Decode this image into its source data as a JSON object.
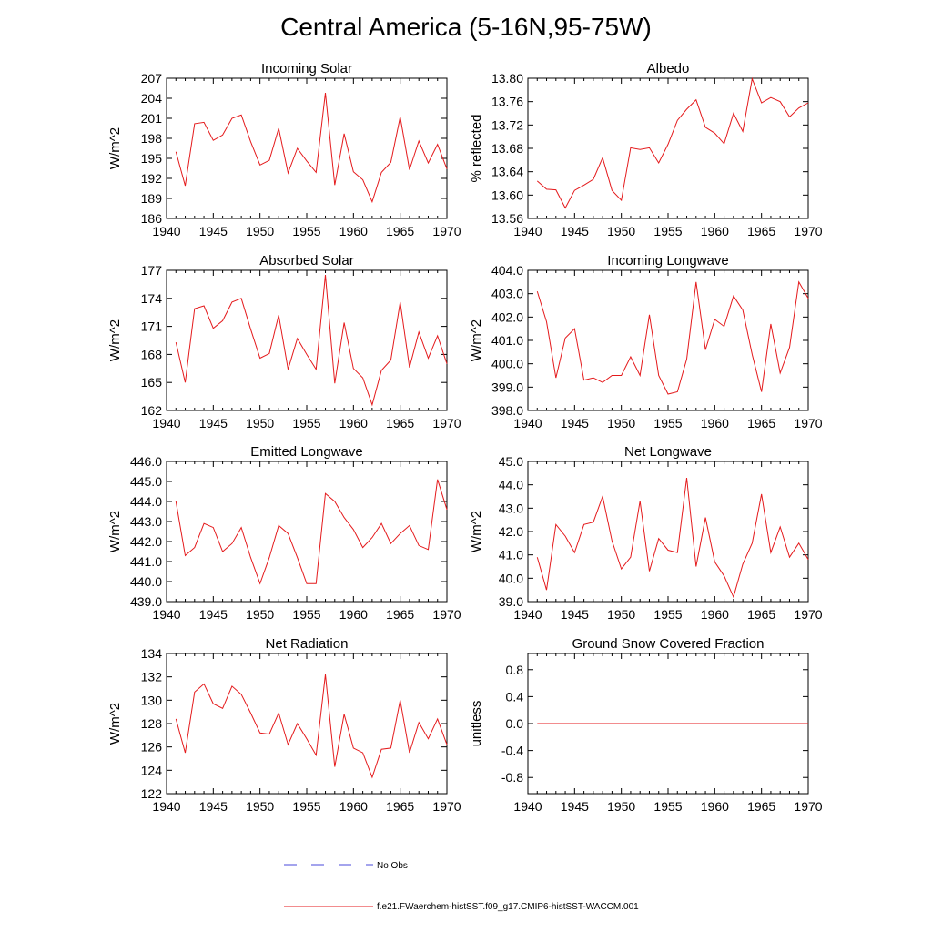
{
  "figure": {
    "title": "Central America (5-16N,95-75W)"
  },
  "legend": {
    "obs_label": "No Obs",
    "obs_color": "#4a4adb",
    "model_label": "f.e21.FWaerchem-histSST.f09_g17.CMIP6-histSST-WACCM.001",
    "model_color": "#e41a1c"
  },
  "chart_data": [
    {
      "type": "line",
      "title": "Incoming Solar",
      "ylabel": "W/m^2",
      "xlabel": "",
      "xlim": [
        1940,
        1970
      ],
      "ylim": [
        186,
        207
      ],
      "yticks": [
        186,
        189,
        192,
        195,
        198,
        201,
        204,
        207
      ],
      "ytick_labels": [
        "186",
        "189",
        "192",
        "195",
        "198",
        "201",
        "204",
        "207"
      ],
      "xticks": [
        1940,
        1945,
        1950,
        1955,
        1960,
        1965,
        1970
      ],
      "series": [
        {
          "x": [
            1941,
            1942,
            1943,
            1944,
            1945,
            1946,
            1947,
            1948,
            1949,
            1950,
            1951,
            1952,
            1953,
            1954,
            1955,
            1956,
            1957,
            1958,
            1959,
            1960,
            1961,
            1962,
            1963,
            1964,
            1965,
            1966,
            1967,
            1968,
            1969,
            1970
          ],
          "values": [
            196.0,
            190.9,
            200.2,
            200.4,
            197.7,
            198.5,
            201.0,
            201.5,
            197.5,
            194.0,
            194.7,
            199.5,
            192.8,
            196.5,
            194.6,
            192.9,
            204.8,
            191.0,
            198.7,
            193.0,
            191.8,
            188.5,
            192.9,
            194.4,
            201.2,
            193.3,
            197.6,
            194.3,
            197.1,
            193.4
          ]
        }
      ]
    },
    {
      "type": "line",
      "title": "Albedo",
      "ylabel": "% reflected",
      "xlabel": "",
      "xlim": [
        1940,
        1970
      ],
      "ylim": [
        13.56,
        13.8
      ],
      "yticks": [
        13.56,
        13.6,
        13.64,
        13.68,
        13.72,
        13.76,
        13.8
      ],
      "ytick_labels": [
        "13.56",
        "13.60",
        "13.64",
        "13.68",
        "13.72",
        "13.76",
        "13.80"
      ],
      "xticks": [
        1940,
        1945,
        1950,
        1955,
        1960,
        1965,
        1970
      ],
      "series": [
        {
          "x": [
            1941,
            1942,
            1943,
            1944,
            1945,
            1946,
            1947,
            1948,
            1949,
            1950,
            1951,
            1952,
            1953,
            1954,
            1955,
            1956,
            1957,
            1958,
            1959,
            1960,
            1961,
            1962,
            1963,
            1964,
            1965,
            1966,
            1967,
            1968,
            1969,
            1970
          ],
          "values": [
            13.624,
            13.61,
            13.609,
            13.578,
            13.608,
            13.617,
            13.627,
            13.664,
            13.608,
            13.591,
            13.681,
            13.678,
            13.681,
            13.655,
            13.687,
            13.728,
            13.747,
            13.763,
            13.716,
            13.706,
            13.688,
            13.74,
            13.709,
            13.799,
            13.758,
            13.767,
            13.76,
            13.734,
            13.749,
            13.758
          ]
        }
      ]
    },
    {
      "type": "line",
      "title": "Absorbed Solar",
      "ylabel": "W/m^2",
      "xlabel": "",
      "xlim": [
        1940,
        1970
      ],
      "ylim": [
        162,
        177
      ],
      "yticks": [
        162,
        165,
        168,
        171,
        174,
        177
      ],
      "ytick_labels": [
        "162",
        "165",
        "168",
        "171",
        "174",
        "177"
      ],
      "xticks": [
        1940,
        1945,
        1950,
        1955,
        1960,
        1965,
        1970
      ],
      "series": [
        {
          "x": [
            1941,
            1942,
            1943,
            1944,
            1945,
            1946,
            1947,
            1948,
            1949,
            1950,
            1951,
            1952,
            1953,
            1954,
            1955,
            1956,
            1957,
            1958,
            1959,
            1960,
            1961,
            1962,
            1963,
            1964,
            1965,
            1966,
            1967,
            1968,
            1969,
            1970
          ],
          "values": [
            169.3,
            165.0,
            172.9,
            173.2,
            170.8,
            171.6,
            173.6,
            174.0,
            170.7,
            167.6,
            168.1,
            172.2,
            166.4,
            169.7,
            168.0,
            166.4,
            176.5,
            164.9,
            171.4,
            166.5,
            165.5,
            162.6,
            166.3,
            167.4,
            173.6,
            166.6,
            170.4,
            167.6,
            170.0,
            167.0
          ]
        }
      ]
    },
    {
      "type": "line",
      "title": "Incoming Longwave",
      "ylabel": "W/m^2",
      "xlabel": "",
      "xlim": [
        1940,
        1970
      ],
      "ylim": [
        398.0,
        404.0
      ],
      "yticks": [
        398,
        399,
        400,
        401,
        402,
        403,
        404
      ],
      "ytick_labels": [
        "398.0",
        "399.0",
        "400.0",
        "401.0",
        "402.0",
        "403.0",
        "404.0"
      ],
      "xticks": [
        1940,
        1945,
        1950,
        1955,
        1960,
        1965,
        1970
      ],
      "series": [
        {
          "x": [
            1941,
            1942,
            1943,
            1944,
            1945,
            1946,
            1947,
            1948,
            1949,
            1950,
            1951,
            1952,
            1953,
            1954,
            1955,
            1956,
            1957,
            1958,
            1959,
            1960,
            1961,
            1962,
            1963,
            1964,
            1965,
            1966,
            1967,
            1968,
            1969,
            1970
          ],
          "values": [
            403.1,
            401.8,
            399.4,
            401.1,
            401.5,
            399.3,
            399.4,
            399.2,
            399.5,
            399.5,
            400.3,
            399.5,
            402.1,
            399.5,
            398.7,
            398.8,
            400.2,
            403.5,
            400.6,
            401.9,
            401.6,
            402.9,
            402.3,
            400.4,
            398.8,
            401.7,
            399.6,
            400.7,
            403.5,
            402.8
          ]
        }
      ]
    },
    {
      "type": "line",
      "title": "Emitted Longwave",
      "ylabel": "W/m^2",
      "xlabel": "",
      "xlim": [
        1940,
        1970
      ],
      "ylim": [
        439.0,
        446.0
      ],
      "yticks": [
        439,
        440,
        441,
        442,
        443,
        444,
        445,
        446
      ],
      "ytick_labels": [
        "439.0",
        "440.0",
        "441.0",
        "442.0",
        "443.0",
        "444.0",
        "445.0",
        "446.0"
      ],
      "xticks": [
        1940,
        1945,
        1950,
        1955,
        1960,
        1965,
        1970
      ],
      "series": [
        {
          "x": [
            1941,
            1942,
            1943,
            1944,
            1945,
            1946,
            1947,
            1948,
            1949,
            1950,
            1951,
            1952,
            1953,
            1954,
            1955,
            1956,
            1957,
            1958,
            1959,
            1960,
            1961,
            1962,
            1963,
            1964,
            1965,
            1966,
            1967,
            1968,
            1969,
            1970
          ],
          "values": [
            444.0,
            441.3,
            441.7,
            442.9,
            442.7,
            441.5,
            441.9,
            442.7,
            441.2,
            439.9,
            441.2,
            442.8,
            442.4,
            441.2,
            439.9,
            439.9,
            444.4,
            444.0,
            443.2,
            442.6,
            441.7,
            442.2,
            442.9,
            441.9,
            442.4,
            442.8,
            441.8,
            441.6,
            445.1,
            443.6
          ]
        }
      ]
    },
    {
      "type": "line",
      "title": "Net Longwave",
      "ylabel": "W/m^2",
      "xlabel": "",
      "xlim": [
        1940,
        1970
      ],
      "ylim": [
        39.0,
        45.0
      ],
      "yticks": [
        39,
        40,
        41,
        42,
        43,
        44,
        45
      ],
      "ytick_labels": [
        "39.0",
        "40.0",
        "41.0",
        "42.0",
        "43.0",
        "44.0",
        "45.0"
      ],
      "xticks": [
        1940,
        1945,
        1950,
        1955,
        1960,
        1965,
        1970
      ],
      "series": [
        {
          "x": [
            1941,
            1942,
            1943,
            1944,
            1945,
            1946,
            1947,
            1948,
            1949,
            1950,
            1951,
            1952,
            1953,
            1954,
            1955,
            1956,
            1957,
            1958,
            1959,
            1960,
            1961,
            1962,
            1963,
            1964,
            1965,
            1966,
            1967,
            1968,
            1969,
            1970
          ],
          "values": [
            40.9,
            39.5,
            42.3,
            41.8,
            41.1,
            42.3,
            42.4,
            43.5,
            41.6,
            40.4,
            40.9,
            43.3,
            40.3,
            41.7,
            41.2,
            41.1,
            44.3,
            40.5,
            42.6,
            40.7,
            40.1,
            39.2,
            40.6,
            41.5,
            43.6,
            41.1,
            42.2,
            40.9,
            41.5,
            40.8
          ]
        }
      ]
    },
    {
      "type": "line",
      "title": "Net Radiation",
      "ylabel": "W/m^2",
      "xlabel": "",
      "xlim": [
        1940,
        1970
      ],
      "ylim": [
        122,
        134
      ],
      "yticks": [
        122,
        124,
        126,
        128,
        130,
        132,
        134
      ],
      "ytick_labels": [
        "122",
        "124",
        "126",
        "128",
        "130",
        "132",
        "134"
      ],
      "xticks": [
        1940,
        1945,
        1950,
        1955,
        1960,
        1965,
        1970
      ],
      "series": [
        {
          "x": [
            1941,
            1942,
            1943,
            1944,
            1945,
            1946,
            1947,
            1948,
            1949,
            1950,
            1951,
            1952,
            1953,
            1954,
            1955,
            1956,
            1957,
            1958,
            1959,
            1960,
            1961,
            1962,
            1963,
            1964,
            1965,
            1966,
            1967,
            1968,
            1969,
            1970
          ],
          "values": [
            128.4,
            125.5,
            130.7,
            131.4,
            129.7,
            129.3,
            131.2,
            130.5,
            128.9,
            127.2,
            127.1,
            128.9,
            126.2,
            128.0,
            126.7,
            125.3,
            132.2,
            124.3,
            128.8,
            125.9,
            125.5,
            123.4,
            125.8,
            125.9,
            130.0,
            125.5,
            128.1,
            126.7,
            128.4,
            126.2
          ]
        }
      ]
    },
    {
      "type": "line",
      "title": "Ground Snow Covered Fraction",
      "ylabel": "unitless",
      "xlabel": "",
      "xlim": [
        1940,
        1970
      ],
      "ylim": [
        -1.04,
        1.04
      ],
      "yticks": [
        -0.8,
        -0.4,
        0.0,
        0.4,
        0.8
      ],
      "ytick_labels": [
        "-0.8",
        "-0.4",
        "0.0",
        "0.4",
        "0.8"
      ],
      "xticks": [
        1940,
        1945,
        1950,
        1955,
        1960,
        1965,
        1970
      ],
      "series": [
        {
          "x": [
            1941,
            1970
          ],
          "values": [
            0.0,
            0.0
          ]
        }
      ]
    }
  ]
}
